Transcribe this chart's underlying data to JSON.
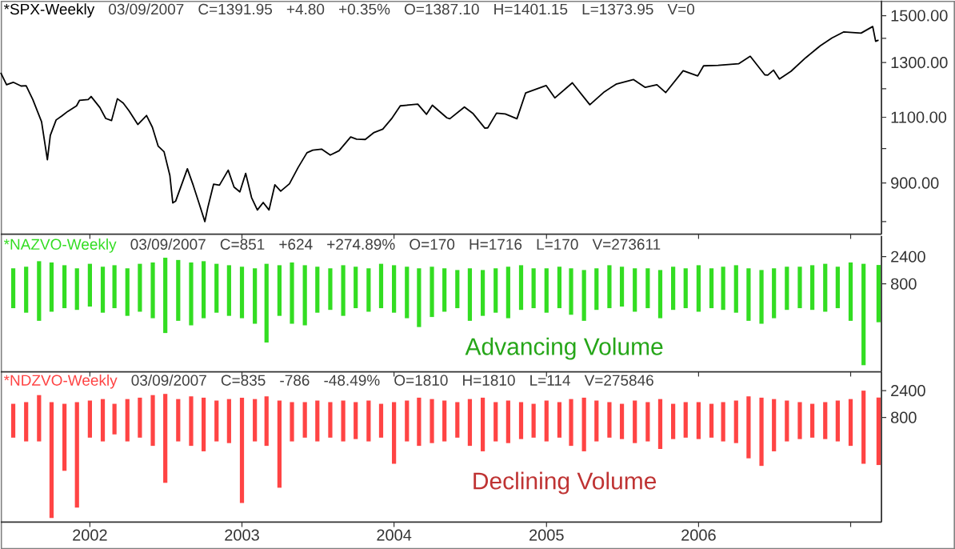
{
  "chart_data": [
    {
      "type": "line",
      "title": "*SPX-Weekly",
      "annotations": [
        "03/09/2007",
        "C=1391.95",
        "+4.80",
        "+0.35%",
        "O=1387.10",
        "H=1401.15",
        "L=1373.95",
        "V=0"
      ],
      "color": "#000000",
      "log": true,
      "tick_labels": "y",
      "xlim": [
        "2001-06-01",
        "2007-03-16"
      ],
      "xticks": [
        {
          "value": "2002-01-01",
          "label": null
        },
        {
          "value": "2003-01-01",
          "label": null
        },
        {
          "value": "2004-01-01",
          "label": null
        },
        {
          "value": "2005-01-01",
          "label": null
        },
        {
          "value": "2006-01-01",
          "label": null
        },
        {
          "value": "2007-01-01",
          "label": null
        }
      ],
      "ylim": [
        770,
        1570
      ],
      "yticks": [
        {
          "value": 800,
          "label": null
        },
        {
          "value": 900,
          "label": "900.00"
        },
        {
          "value": 1000,
          "label": null
        },
        {
          "value": 1100,
          "label": "1100.00"
        },
        {
          "value": 1200,
          "label": null
        },
        {
          "value": 1300,
          "label": "1300.00"
        },
        {
          "value": 1400,
          "label": null
        },
        {
          "value": 1500,
          "label": "1500.00"
        }
      ],
      "x": [
        "2001-06-01",
        "2001-06-15",
        "2001-07-01",
        "2001-07-20",
        "2001-08-01",
        "2001-08-17",
        "2001-09-07",
        "2001-09-21",
        "2001-09-28",
        "2001-10-12",
        "2001-10-26",
        "2001-11-09",
        "2001-11-30",
        "2001-12-07",
        "2001-12-28",
        "2002-01-04",
        "2002-01-25",
        "2002-02-08",
        "2002-02-22",
        "2002-03-08",
        "2002-03-22",
        "2002-04-05",
        "2002-04-26",
        "2002-05-17",
        "2002-05-31",
        "2002-06-14",
        "2002-06-28",
        "2002-07-12",
        "2002-07-19",
        "2002-07-26",
        "2002-08-23",
        "2002-09-06",
        "2002-09-20",
        "2002-10-04",
        "2002-10-11",
        "2002-10-25",
        "2002-11-08",
        "2002-11-29",
        "2002-12-13",
        "2002-12-27",
        "2003-01-10",
        "2003-01-24",
        "2003-02-07",
        "2003-02-21",
        "2003-03-07",
        "2003-03-21",
        "2003-04-04",
        "2003-04-25",
        "2003-05-16",
        "2003-06-06",
        "2003-06-20",
        "2003-07-11",
        "2003-08-01",
        "2003-08-22",
        "2003-09-19",
        "2003-10-03",
        "2003-10-24",
        "2003-11-14",
        "2003-12-05",
        "2003-12-26",
        "2004-01-16",
        "2004-02-06",
        "2004-02-27",
        "2004-03-19",
        "2004-04-02",
        "2004-05-07",
        "2004-05-14",
        "2004-06-18",
        "2004-07-09",
        "2004-08-06",
        "2004-08-13",
        "2004-09-03",
        "2004-09-24",
        "2004-10-22",
        "2004-11-12",
        "2004-12-31",
        "2005-01-21",
        "2005-03-04",
        "2005-04-15",
        "2005-05-20",
        "2005-06-17",
        "2005-07-29",
        "2005-08-26",
        "2005-09-23",
        "2005-10-14",
        "2005-11-25",
        "2005-12-30",
        "2006-01-13",
        "2006-02-17",
        "2006-04-07",
        "2006-05-05",
        "2006-06-09",
        "2006-06-16",
        "2006-06-30",
        "2006-07-14",
        "2006-08-11",
        "2006-09-15",
        "2006-10-20",
        "2006-11-17",
        "2006-12-15",
        "2007-01-26",
        "2007-02-23",
        "2007-03-02",
        "2007-03-09"
      ],
      "values": [
        1260,
        1215,
        1224,
        1210,
        1211,
        1161,
        1085,
        966,
        1041,
        1091,
        1105,
        1120,
        1139,
        1158,
        1161,
        1172,
        1133,
        1096,
        1089,
        1164,
        1149,
        1122,
        1076,
        1106,
        1067,
        1007,
        990,
        921,
        847,
        852,
        940,
        894,
        846,
        800,
        835,
        897,
        894,
        936,
        889,
        876,
        927,
        861,
        829,
        848,
        829,
        895,
        878,
        898,
        944,
        987,
        995,
        998,
        980,
        993,
        1036,
        1029,
        1028,
        1050,
        1061,
        1095,
        1139,
        1142,
        1145,
        1110,
        1141,
        1098,
        1095,
        1135,
        1112,
        1064,
        1065,
        1114,
        1111,
        1095,
        1185,
        1212,
        1167,
        1222,
        1143,
        1189,
        1217,
        1234,
        1205,
        1215,
        1186,
        1268,
        1248,
        1287,
        1289,
        1295,
        1325,
        1252,
        1251,
        1270,
        1236,
        1266,
        1319,
        1368,
        1401,
        1427,
        1422,
        1451,
        1387,
        1392
      ]
    },
    {
      "type": "bar",
      "title": "*NAZVO-Weekly",
      "subtitle": "Advancing Volume",
      "annotations": [
        "03/09/2007",
        "C=851",
        "+624",
        "+274.89%",
        "O=170",
        "H=1716",
        "L=170",
        "V=273611"
      ],
      "color": "#33dd22",
      "log": true,
      "tick_labels": "y",
      "xlim": [
        "2001-06-01",
        "2007-03-16"
      ],
      "xticks": [
        {
          "value": "2002-01-01",
          "label": null
        },
        {
          "value": "2003-01-01",
          "label": null
        },
        {
          "value": "2004-01-01",
          "label": null
        },
        {
          "value": "2005-01-01",
          "label": null
        },
        {
          "value": "2006-01-01",
          "label": null
        },
        {
          "value": "2007-01-01",
          "label": null
        }
      ],
      "ylim": [
        23,
        5570
      ],
      "yticks": [
        800,
        2400
      ],
      "x": [
        "2001-07",
        "2001-08",
        "2001-09",
        "2001-10",
        "2001-11",
        "2001-12",
        "2002-01",
        "2002-02",
        "2002-03",
        "2002-04",
        "2002-05",
        "2002-06",
        "2002-07",
        "2002-08",
        "2002-09",
        "2002-10",
        "2002-11",
        "2002-12",
        "2003-01",
        "2003-02",
        "2003-03",
        "2003-04",
        "2003-05",
        "2003-06",
        "2003-07",
        "2003-08",
        "2003-09",
        "2003-10",
        "2003-11",
        "2003-12",
        "2004-01",
        "2004-02",
        "2004-03",
        "2004-04",
        "2004-05",
        "2004-06",
        "2004-07",
        "2004-08",
        "2004-09",
        "2004-10",
        "2004-11",
        "2004-12",
        "2005-01",
        "2005-02",
        "2005-03",
        "2005-04",
        "2005-05",
        "2005-06",
        "2005-07",
        "2005-08",
        "2005-09",
        "2005-10",
        "2005-11",
        "2005-12",
        "2006-01",
        "2006-02",
        "2006-03",
        "2006-04",
        "2006-05",
        "2006-06",
        "2006-07",
        "2006-08",
        "2006-09",
        "2006-10",
        "2006-11",
        "2006-12",
        "2007-01",
        "2007-02",
        "2007-03-09"
      ],
      "base": [
        300,
        250,
        180,
        260,
        300,
        280,
        320,
        250,
        300,
        220,
        260,
        200,
        110,
        180,
        150,
        200,
        250,
        220,
        200,
        160,
        75,
        220,
        160,
        150,
        250,
        280,
        220,
        300,
        260,
        300,
        250,
        200,
        140,
        210,
        260,
        300,
        180,
        220,
        250,
        200,
        280,
        300,
        250,
        300,
        230,
        180,
        280,
        300,
        320,
        260,
        300,
        200,
        280,
        300,
        260,
        300,
        280,
        250,
        180,
        160,
        200,
        280,
        300,
        280,
        260,
        300,
        180,
        30,
        170
      ],
      "values": [
        1200,
        1350,
        1820,
        1640,
        1400,
        1220,
        1480,
        1350,
        1400,
        1280,
        1540,
        1700,
        2190,
        1920,
        1750,
        1800,
        1550,
        1480,
        1400,
        1340,
        1725,
        1480,
        1740,
        1550,
        1350,
        1220,
        1480,
        1300,
        1240,
        1500,
        1450,
        1400,
        1360,
        1390,
        1240,
        1100,
        1320,
        1180,
        1250,
        1400,
        1420,
        1200,
        1250,
        1300,
        1270,
        1220,
        1220,
        1400,
        1280,
        1240,
        1200,
        1200,
        1320,
        1200,
        1440,
        1200,
        1320,
        1450,
        1320,
        1240,
        1300,
        1320,
        1300,
        1420,
        1540,
        1300,
        1720,
        1770,
        1546
      ]
    },
    {
      "type": "bar",
      "title": "*NDZVO-Weekly",
      "subtitle": "Declining Volume",
      "annotations": [
        "03/09/2007",
        "C=835",
        "-786",
        "-48.49%",
        "O=1810",
        "H=1810",
        "L=114",
        "V=275846"
      ],
      "color": "#ff4444",
      "log": true,
      "xlim": [
        "2001-06-01",
        "2007-03-16"
      ],
      "xticks": [
        {
          "value": "2002-01-01",
          "label": "2002"
        },
        {
          "value": "2003-01-01",
          "label": "2003"
        },
        {
          "value": "2004-01-01",
          "label": "2004"
        },
        {
          "value": "2005-01-01",
          "label": "2005"
        },
        {
          "value": "2006-01-01",
          "label": "2006"
        },
        {
          "value": "2007-01-01",
          "label": null
        }
      ],
      "ylim": [
        11,
        5200
      ],
      "yticks": [
        800,
        2400
      ],
      "x": [
        "2001-07",
        "2001-08",
        "2001-09",
        "2001-10",
        "2001-11",
        "2001-12",
        "2002-01",
        "2002-02",
        "2002-03",
        "2002-04",
        "2002-05",
        "2002-06",
        "2002-07",
        "2002-08",
        "2002-09",
        "2002-10",
        "2002-11",
        "2002-12",
        "2003-01",
        "2003-02",
        "2003-03",
        "2003-04",
        "2003-05",
        "2003-06",
        "2003-07",
        "2003-08",
        "2003-09",
        "2003-10",
        "2003-11",
        "2003-12",
        "2004-01",
        "2004-02",
        "2004-03",
        "2004-04",
        "2004-05",
        "2004-06",
        "2004-07",
        "2004-08",
        "2004-09",
        "2004-10",
        "2004-11",
        "2004-12",
        "2005-01",
        "2005-02",
        "2005-03",
        "2005-04",
        "2005-05",
        "2005-06",
        "2005-07",
        "2005-08",
        "2005-09",
        "2005-10",
        "2005-11",
        "2005-12",
        "2006-01",
        "2006-02",
        "2006-03",
        "2006-04",
        "2006-05",
        "2006-06",
        "2006-07",
        "2006-08",
        "2006-09",
        "2006-10",
        "2006-11",
        "2006-12",
        "2007-01",
        "2007-02",
        "2007-03-09"
      ],
      "base": [
        350,
        300,
        300,
        13,
        90,
        20,
        350,
        300,
        400,
        300,
        350,
        250,
        55,
        300,
        250,
        200,
        300,
        280,
        24,
        300,
        250,
        45,
        300,
        350,
        300,
        350,
        300,
        330,
        300,
        350,
        120,
        300,
        250,
        280,
        300,
        350,
        250,
        200,
        300,
        280,
        330,
        350,
        300,
        350,
        250,
        200,
        300,
        350,
        330,
        280,
        300,
        220,
        330,
        350,
        330,
        350,
        300,
        280,
        150,
        110,
        200,
        300,
        330,
        350,
        330,
        300,
        250,
        120,
        114
      ],
      "values": [
        1050,
        1200,
        1700,
        1487,
        1310,
        1480,
        1250,
        1400,
        1000,
        1400,
        1450,
        1750,
        2045,
        1400,
        1650,
        1600,
        1300,
        1420,
        1776,
        1400,
        1650,
        1555,
        1200,
        1150,
        1300,
        1150,
        1300,
        1170,
        1300,
        1050,
        1380,
        1300,
        1550,
        1420,
        1300,
        1150,
        1450,
        1600,
        1200,
        1320,
        1170,
        1050,
        1300,
        1150,
        1450,
        1600,
        1300,
        1150,
        1070,
        1320,
        1200,
        1480,
        1070,
        1150,
        1170,
        1050,
        1200,
        1320,
        1750,
        1690,
        1500,
        1300,
        1170,
        1050,
        1170,
        1300,
        1450,
        2280,
        1696
      ]
    }
  ]
}
